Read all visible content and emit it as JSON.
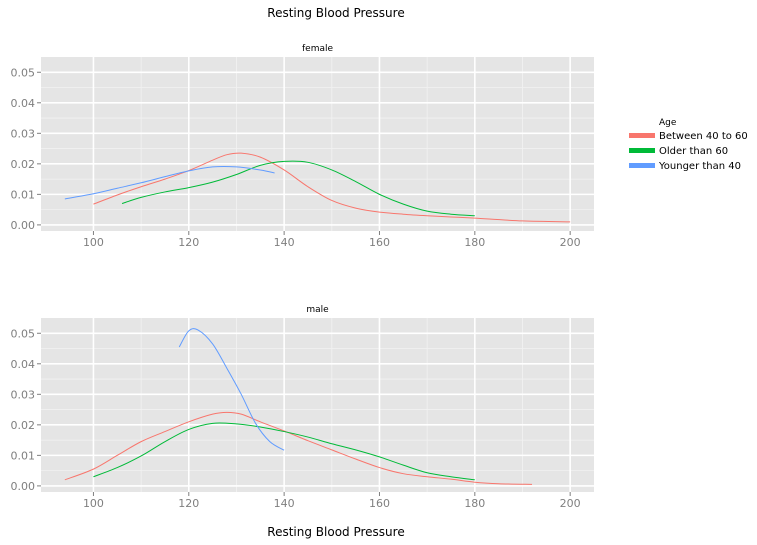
{
  "chart_data": {
    "type": "line",
    "title": "Resting Blood Pressure",
    "xlabel": "Resting Blood Pressure",
    "ylabel": "",
    "xlim": [
      89,
      205
    ],
    "ylim": [
      -0.002,
      0.055
    ],
    "x_ticks": [
      "100",
      "120",
      "140",
      "160",
      "180",
      "200"
    ],
    "y_ticks": [
      "0.00",
      "0.01",
      "0.02",
      "0.03",
      "0.04",
      "0.05"
    ],
    "grid": true,
    "legend": {
      "title": "Age",
      "placement": "right",
      "entries": [
        {
          "label": "Between 40 to 60",
          "color": "#F8766D"
        },
        {
          "label": "Older than 60",
          "color": "#00BA38"
        },
        {
          "label": "Younger than 40",
          "color": "#619CFF"
        }
      ]
    },
    "facets": [
      {
        "label": "female",
        "series": [
          {
            "name": "Between 40 to 60",
            "color": "#F8766D",
            "x": [
              100,
              105,
              110,
              115,
              120,
              125,
              128,
              131,
              135,
              140,
              145,
              150,
              155,
              160,
              165,
              170,
              175,
              180,
              190,
              200
            ],
            "y": [
              0.0068,
              0.0098,
              0.0125,
              0.015,
              0.0178,
              0.0212,
              0.023,
              0.0235,
              0.0222,
              0.018,
              0.0125,
              0.008,
              0.0055,
              0.0042,
              0.0035,
              0.003,
              0.0026,
              0.0022,
              0.0013,
              0.001
            ]
          },
          {
            "name": "Older than 60",
            "color": "#00BA38",
            "x": [
              106,
              110,
              115,
              120,
              125,
              130,
              135,
              140,
              145,
              150,
              155,
              160,
              165,
              170,
              175,
              180
            ],
            "y": [
              0.007,
              0.009,
              0.0108,
              0.0122,
              0.014,
              0.0165,
              0.0195,
              0.0208,
              0.0205,
              0.018,
              0.0142,
              0.01,
              0.0068,
              0.0045,
              0.0035,
              0.003
            ]
          },
          {
            "name": "Younger than 40",
            "color": "#619CFF",
            "x": [
              94,
              100,
              105,
              110,
              115,
              120,
              125,
              130,
              135,
              138
            ],
            "y": [
              0.0085,
              0.0102,
              0.012,
              0.0138,
              0.0158,
              0.0177,
              0.019,
              0.019,
              0.018,
              0.017
            ]
          }
        ]
      },
      {
        "label": "male",
        "series": [
          {
            "name": "Between 40 to 60",
            "color": "#F8766D",
            "x": [
              94,
              100,
              105,
              110,
              115,
              120,
              125,
              128,
              131,
              135,
              140,
              145,
              150,
              155,
              160,
              165,
              170,
              175,
              180,
              185,
              192
            ],
            "y": [
              0.002,
              0.0055,
              0.01,
              0.0145,
              0.0178,
              0.021,
              0.0235,
              0.0241,
              0.0235,
              0.021,
              0.018,
              0.0148,
              0.0118,
              0.0088,
              0.006,
              0.004,
              0.003,
              0.0022,
              0.0012,
              0.0007,
              0.0005
            ]
          },
          {
            "name": "Older than 60",
            "color": "#00BA38",
            "x": [
              100,
              105,
              110,
              115,
              120,
              125,
              130,
              135,
              140,
              145,
              150,
              155,
              160,
              165,
              170,
              175,
              180
            ],
            "y": [
              0.003,
              0.006,
              0.0098,
              0.0145,
              0.0185,
              0.0205,
              0.0203,
              0.0193,
              0.0178,
              0.016,
              0.0138,
              0.0118,
              0.0095,
              0.0068,
              0.0043,
              0.003,
              0.002
            ]
          },
          {
            "name": "Younger than 40",
            "color": "#619CFF",
            "x": [
              118,
              120,
              122,
              125,
              128,
              131,
              134,
              137,
              140
            ],
            "y": [
              0.0455,
              0.0508,
              0.051,
              0.0465,
              0.0385,
              0.03,
              0.0205,
              0.0145,
              0.0117
            ]
          }
        ]
      }
    ]
  }
}
